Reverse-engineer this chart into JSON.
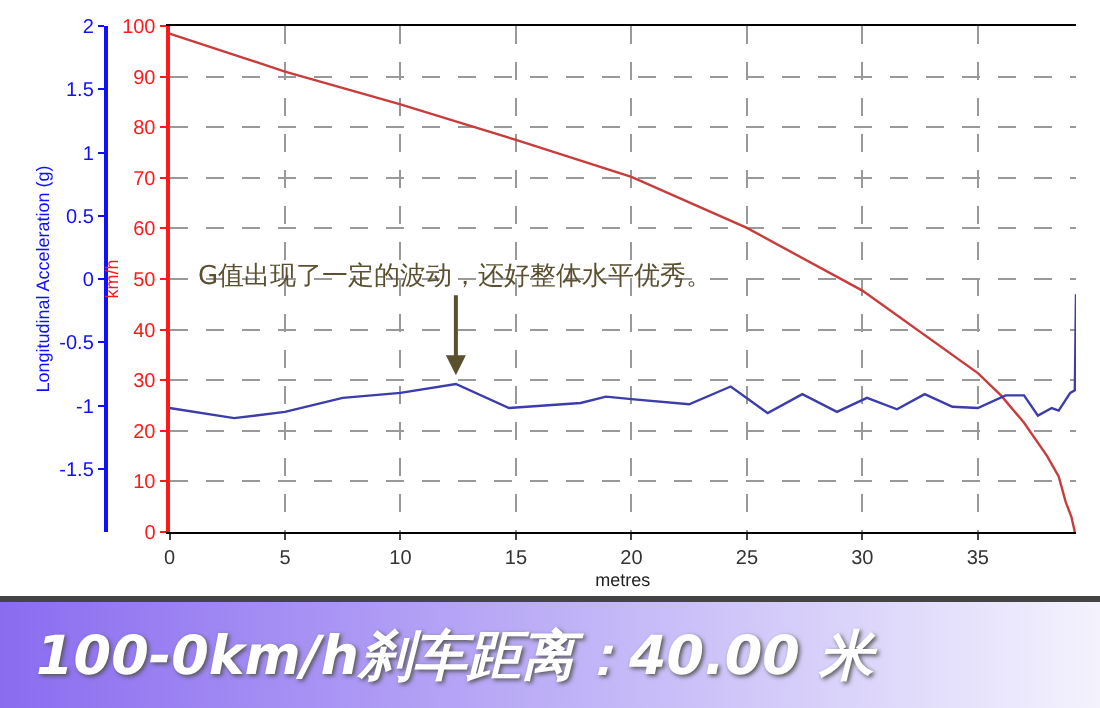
{
  "chart_data": {
    "type": "line",
    "title": "100-0km/h刹车距离：40.00 米",
    "xlabel": "metres",
    "ylabel": "km/h",
    "y2label": "Longitudinal Acceleration (g)",
    "annotations": [
      {
        "text": "G值出现了一定的波动，还好整体水平优秀。",
        "x": 12.4,
        "y": 31
      }
    ],
    "series": [
      {
        "color": "#c83c3c",
        "x": [
          0,
          5,
          10,
          12.5,
          15,
          20,
          25,
          30,
          35,
          36,
          37,
          38,
          38.5,
          38.8,
          39.05,
          39.2
        ],
        "values": [
          98.5,
          91,
          84.5,
          81,
          77.5,
          70.2,
          60.1,
          47.7,
          31.4,
          27,
          21.6,
          15,
          11,
          6,
          3,
          0
        ]
      },
      {
        "color": "#3c3caa",
        "axis": "y2",
        "x": [
          0,
          2.8,
          5,
          7.5,
          10,
          12.4,
          14.7,
          17.8,
          18.9,
          20,
          22.5,
          24.3,
          25.9,
          27.4,
          28.9,
          30.2,
          31.5,
          32.7,
          33.9,
          35,
          36.2,
          37,
          37.6,
          38.2,
          38.5,
          39,
          39.2,
          39.25
        ],
        "values": [
          -1.02,
          -1.1,
          -1.05,
          -0.94,
          -0.9,
          -0.83,
          -1.02,
          -0.98,
          -0.93,
          -0.95,
          -0.99,
          -0.85,
          -1.06,
          -0.91,
          -1.05,
          -0.94,
          -1.03,
          -0.91,
          -1.01,
          -1.02,
          -0.92,
          -0.92,
          -1.08,
          -1.02,
          -1.04,
          -0.9,
          -0.88,
          -0.12
        ]
      }
    ],
    "xlim": [
      0,
      39.25
    ],
    "xticks": [
      0,
      5,
      10,
      15,
      20,
      25,
      30,
      35
    ],
    "ylim": [
      0,
      100
    ],
    "yticks": [
      0,
      10,
      20,
      30,
      40,
      50,
      60,
      70,
      80,
      90,
      100
    ],
    "y2lim": [
      -2,
      2
    ],
    "y2ticks": [
      -1.5,
      -1,
      -0.5,
      0,
      0.5,
      1,
      1.5,
      2
    ],
    "grid": true,
    "line_style": "solid",
    "marker": "none"
  }
}
